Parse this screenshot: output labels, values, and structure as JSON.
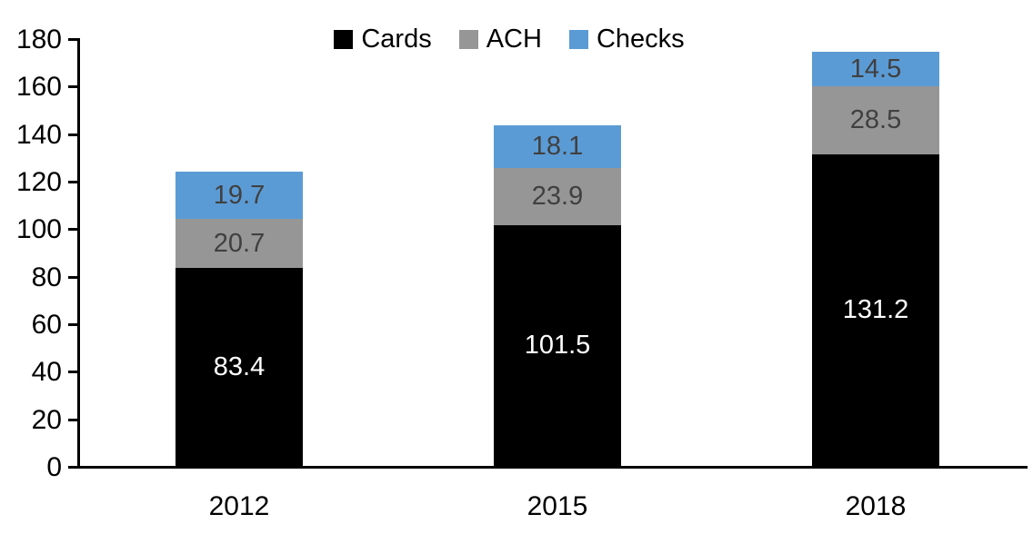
{
  "chart_data": {
    "type": "bar",
    "stacked": true,
    "title": "",
    "categories": [
      "2012",
      "2015",
      "2018"
    ],
    "series": [
      {
        "name": "Cards",
        "color": "#000000",
        "label_color": "#FFFFFF",
        "values": [
          83.4,
          101.5,
          131.2
        ]
      },
      {
        "name": "ACH",
        "color": "#969696",
        "label_color": "#404040",
        "values": [
          20.7,
          23.9,
          28.5
        ]
      },
      {
        "name": "Checks",
        "color": "#5B9BD5",
        "label_color": "#404040",
        "values": [
          19.7,
          18.1,
          14.5
        ]
      }
    ],
    "stack_order_bottom_to_top": [
      "Cards",
      "ACH",
      "Checks"
    ],
    "y_axis": {
      "min": 0,
      "max": 180,
      "step": 20,
      "tick_labels": [
        "0",
        "20",
        "40",
        "60",
        "80",
        "100",
        "120",
        "140",
        "160",
        "180"
      ]
    },
    "x_axis": {
      "tick_labels": [
        "2012",
        "2015",
        "2018"
      ]
    },
    "legend": {
      "position": "top",
      "entries": [
        "Cards",
        "ACH",
        "Checks"
      ]
    },
    "grid": false,
    "background": "#FFFFFF",
    "axis_color": "#000000"
  }
}
